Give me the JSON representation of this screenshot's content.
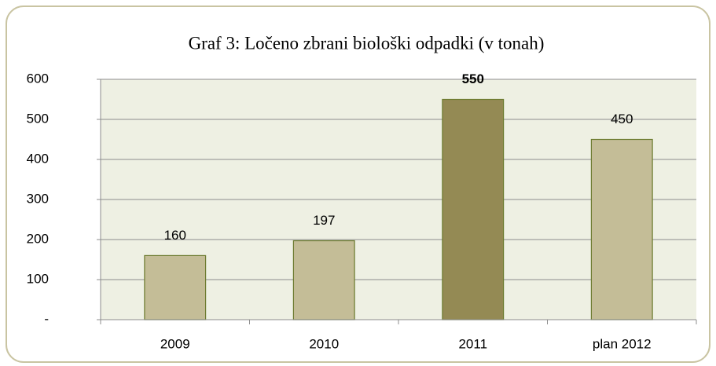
{
  "chart_data": {
    "type": "bar",
    "title": "Graf 3: Ločeno zbrani biološki odpadki (v tonah)",
    "categories": [
      "2009",
      "2010",
      "2011",
      "plan 2012"
    ],
    "values": [
      160,
      197,
      550,
      450
    ],
    "colors": [
      "#c4bd97",
      "#c4bd97",
      "#948a54",
      "#c4bd97"
    ],
    "value_label_bold": [
      false,
      false,
      true,
      false
    ],
    "ylim": [
      0,
      600
    ],
    "yticks": [
      {
        "value": 0,
        "label": "-"
      },
      100,
      200,
      300,
      400,
      500,
      600
    ],
    "grid": true
  }
}
